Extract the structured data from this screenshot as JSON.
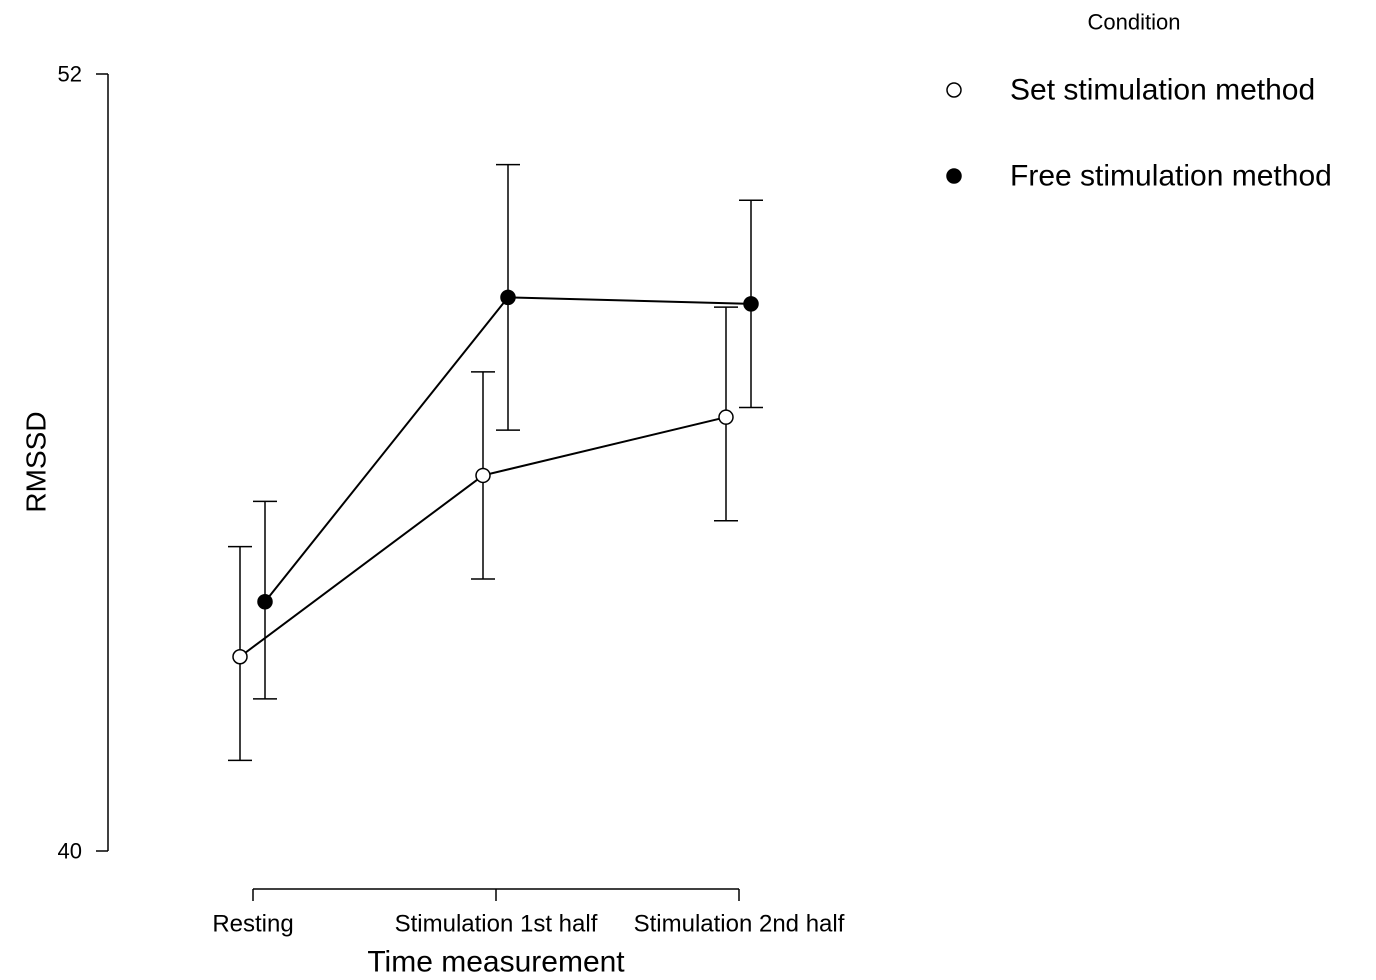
{
  "chart_data": {
    "type": "line",
    "title": "",
    "xlabel": "Time measurement",
    "ylabel": "RMSSD",
    "categories": [
      "Resting",
      "Stimulation 1st half",
      "Stimulation 2nd half"
    ],
    "ylim": [
      40,
      52
    ],
    "yticks": [
      "40",
      "52"
    ],
    "grid": false,
    "legend": {
      "title": "Condition",
      "placement": "top-right"
    },
    "series": [
      {
        "name": "Set stimulation method",
        "marker": "open-circle",
        "color": "#ffffff",
        "values": [
          43.0,
          45.8,
          46.7
        ],
        "error_low": [
          41.4,
          44.2,
          45.1
        ],
        "error_high": [
          44.7,
          47.4,
          48.4
        ]
      },
      {
        "name": "Free stimulation method",
        "marker": "filled-circle",
        "color": "#000000",
        "values": [
          43.85,
          48.55,
          48.45
        ],
        "error_low": [
          42.35,
          46.5,
          46.85
        ],
        "error_high": [
          45.4,
          50.6,
          50.05
        ]
      }
    ]
  }
}
